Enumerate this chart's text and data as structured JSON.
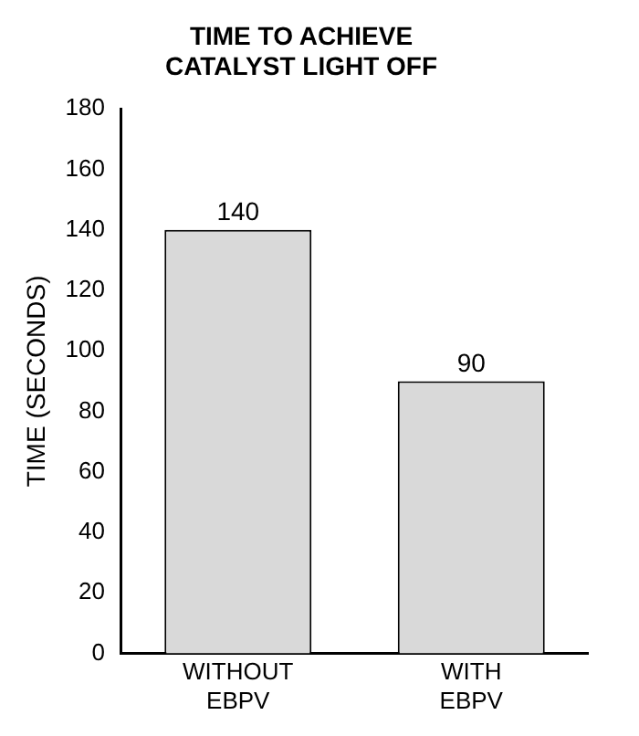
{
  "chart_data": {
    "type": "bar",
    "title": "TIME TO ACHIEVE\nCATALYST LIGHT OFF",
    "ylabel": "TIME (SECONDS)",
    "categories": [
      "WITHOUT\nEBPV",
      "WITH\nEBPV"
    ],
    "values": [
      140,
      90
    ],
    "color": "#d9d9d9",
    "ylim": [
      0,
      180
    ],
    "yticks": [
      0,
      20,
      40,
      60,
      80,
      100,
      120,
      140,
      160,
      180
    ],
    "grid": false,
    "legend": false,
    "data_labels": true
  }
}
